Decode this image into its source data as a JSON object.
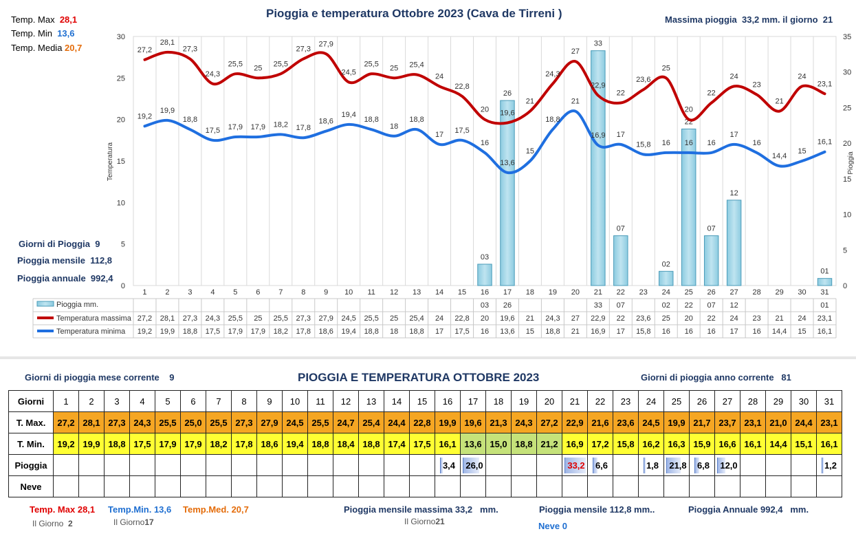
{
  "header": {
    "title": "Pioggia e temperatura Ottobre 2023 (Cava de Tirreni )",
    "max_rain_label": "Massima pioggia",
    "max_rain_value": "33,2 mm. il giorno",
    "max_rain_day": "21"
  },
  "stats_top": {
    "tmax_label": "Temp. Max",
    "tmax": "28,1",
    "tmin_label": "Temp. Min",
    "tmin": "13,6",
    "tmed_label": "Temp. Media",
    "tmed": "20,7"
  },
  "stats_left": {
    "giorni_label": "Giorni di Pioggia",
    "giorni": "9",
    "mensile_label": "Pioggia mensile",
    "mensile": "112,8",
    "annuale_label": "Pioggia annuale",
    "annuale": "992,4"
  },
  "chart_data": {
    "type": "line",
    "ylabel": "Temperatura",
    "y2label": "Pioggia",
    "ylim": [
      0,
      30
    ],
    "y2lim": [
      0,
      35
    ],
    "yticks": [
      "0",
      "5",
      "10",
      "15",
      "20",
      "25",
      "30"
    ],
    "y2ticks": [
      "0",
      "5",
      "10",
      "15",
      "20",
      "25",
      "30",
      "35"
    ],
    "x": [
      "1",
      "2",
      "3",
      "4",
      "5",
      "6",
      "7",
      "8",
      "9",
      "10",
      "11",
      "12",
      "13",
      "14",
      "15",
      "16",
      "17",
      "18",
      "19",
      "20",
      "21",
      "22",
      "23",
      "24",
      "25",
      "26",
      "27",
      "28",
      "29",
      "30",
      "31"
    ],
    "series": [
      {
        "name": "Temperatura massima",
        "color": "#c00000",
        "values": [
          27.2,
          28.1,
          27.3,
          24.3,
          25.5,
          25,
          25.5,
          27.3,
          27.9,
          24.5,
          25.5,
          25,
          25.4,
          24,
          22.8,
          20,
          19.6,
          21,
          24.3,
          27,
          22.9,
          22,
          23.6,
          25,
          20,
          22,
          24,
          23,
          21,
          24,
          23.1
        ],
        "labels": [
          "27,2",
          "28,1",
          "27,3",
          "24,3",
          "25,5",
          "25",
          "25,5",
          "27,3",
          "27,9",
          "24,5",
          "25,5",
          "25",
          "25,4",
          "24",
          "22,8",
          "20",
          "19,6",
          "21",
          "24,3",
          "27",
          "22,9",
          "22",
          "23,6",
          "25",
          "20",
          "22",
          "24",
          "23",
          "21",
          "24",
          "23,1"
        ]
      },
      {
        "name": "Temperatura minima",
        "color": "#1f6fe0",
        "values": [
          19.2,
          19.9,
          18.8,
          17.5,
          17.9,
          17.9,
          18.2,
          17.8,
          18.6,
          19.4,
          18.8,
          18,
          18.8,
          17,
          17.5,
          16,
          13.6,
          15,
          18.8,
          21,
          16.9,
          17,
          15.8,
          16,
          16,
          16,
          17,
          16,
          14.4,
          15,
          16.1
        ],
        "labels": [
          "19,2",
          "19,9",
          "18,8",
          "17,5",
          "17,9",
          "17,9",
          "18,2",
          "17,8",
          "18,6",
          "19,4",
          "18,8",
          "18",
          "18,8",
          "17",
          "17,5",
          "16",
          "13,6",
          "15",
          "18,8",
          "21",
          "16,9",
          "17",
          "15,8",
          "16",
          "16",
          "16",
          "17",
          "16",
          "14,4",
          "15",
          "16,1"
        ]
      }
    ],
    "rain": {
      "name": "Pioggia mm.",
      "values": [
        0,
        0,
        0,
        0,
        0,
        0,
        0,
        0,
        0,
        0,
        0,
        0,
        0,
        0,
        0,
        3,
        26,
        0,
        0,
        0,
        33,
        7,
        0,
        2,
        22,
        7,
        12,
        0,
        0,
        0,
        1
      ],
      "labels": [
        "",
        "",
        "",
        "",
        "",
        "",
        "",
        "",
        "",
        "",
        "",
        "",
        "",
        "",
        "",
        "03",
        "26",
        "",
        "",
        "",
        "33",
        "07",
        "",
        "02",
        "22",
        "07",
        "12",
        "",
        "",
        "",
        "01"
      ]
    }
  },
  "bottom": {
    "giorni_mese_label": "Giorni di pioggia mese corrente",
    "giorni_mese": "9",
    "title": "PIOGGIA E TEMPERATURA OTTOBRE 2023",
    "giorni_anno_label": "Giorni di pioggia anno corrente",
    "giorni_anno": "81",
    "rows": {
      "giorni": "Giorni",
      "tmax": "T. Max.",
      "tmin": "T. Min.",
      "pioggia": "Pioggia",
      "neve": "Neve"
    },
    "days": [
      "1",
      "2",
      "3",
      "4",
      "5",
      "6",
      "7",
      "8",
      "9",
      "10",
      "11",
      "12",
      "13",
      "14",
      "15",
      "16",
      "17",
      "18",
      "19",
      "20",
      "21",
      "22",
      "23",
      "24",
      "25",
      "26",
      "27",
      "28",
      "29",
      "30",
      "31"
    ],
    "tmax": [
      "27,2",
      "28,1",
      "27,3",
      "24,3",
      "25,5",
      "25,0",
      "25,5",
      "27,3",
      "27,9",
      "24,5",
      "25,5",
      "24,7",
      "25,4",
      "24,4",
      "22,8",
      "19,9",
      "19,6",
      "21,3",
      "24,3",
      "27,2",
      "22,9",
      "21,6",
      "23,6",
      "24,5",
      "19,9",
      "21,7",
      "23,7",
      "23,1",
      "21,0",
      "24,4",
      "23,1"
    ],
    "tmin": [
      "19,2",
      "19,9",
      "18,8",
      "17,5",
      "17,9",
      "17,9",
      "18,2",
      "17,8",
      "18,6",
      "19,4",
      "18,8",
      "18,4",
      "18,8",
      "17,4",
      "17,5",
      "16,1",
      "13,6",
      "15,0",
      "18,8",
      "21,2",
      "16,9",
      "17,2",
      "15,8",
      "16,2",
      "16,3",
      "15,9",
      "16,6",
      "16,1",
      "14,4",
      "15,1",
      "16,1"
    ],
    "rain": [
      "",
      "",
      "",
      "",
      "",
      "",
      "",
      "",
      "",
      "",
      "",
      "",
      "",
      "",
      "",
      "3,4",
      "26,0",
      "",
      "",
      "",
      "33,2",
      "6,6",
      "",
      "1,8",
      "21,8",
      "6,8",
      "12,0",
      "",
      "",
      "",
      "1,2"
    ],
    "rain_frac": [
      0,
      0,
      0,
      0,
      0,
      0,
      0,
      0,
      0,
      0,
      0,
      0,
      0,
      0,
      0,
      0.1,
      0.78,
      0,
      0,
      0,
      1,
      0.2,
      0,
      0.05,
      0.66,
      0.2,
      0.36,
      0,
      0,
      0,
      0.04
    ],
    "footer": {
      "tmax_label": "Temp. Max",
      "tmax": "28,1",
      "tmax_day_label": "Il Giorno",
      "tmax_day": "2",
      "tmin_label": "Temp.Min.",
      "tmin": "13,6",
      "tmin_day_label": "Il Giorno",
      "tmin_day": "17",
      "tmed_label": "Temp.Med.",
      "tmed": "20,7",
      "max_month_label": "Pioggia mensile massima",
      "max_month": "33,2",
      "max_month_unit": "mm.",
      "max_month_day_label": "Il Giorno",
      "max_month_day": "21",
      "mensile_label": "Pioggia mensile",
      "mensile": "112,8 mm..",
      "neve_label": "Neve",
      "neve": "0",
      "annuale_label": "Pioggia Annuale",
      "annuale": "992,4",
      "annuale_unit": "mm."
    }
  }
}
